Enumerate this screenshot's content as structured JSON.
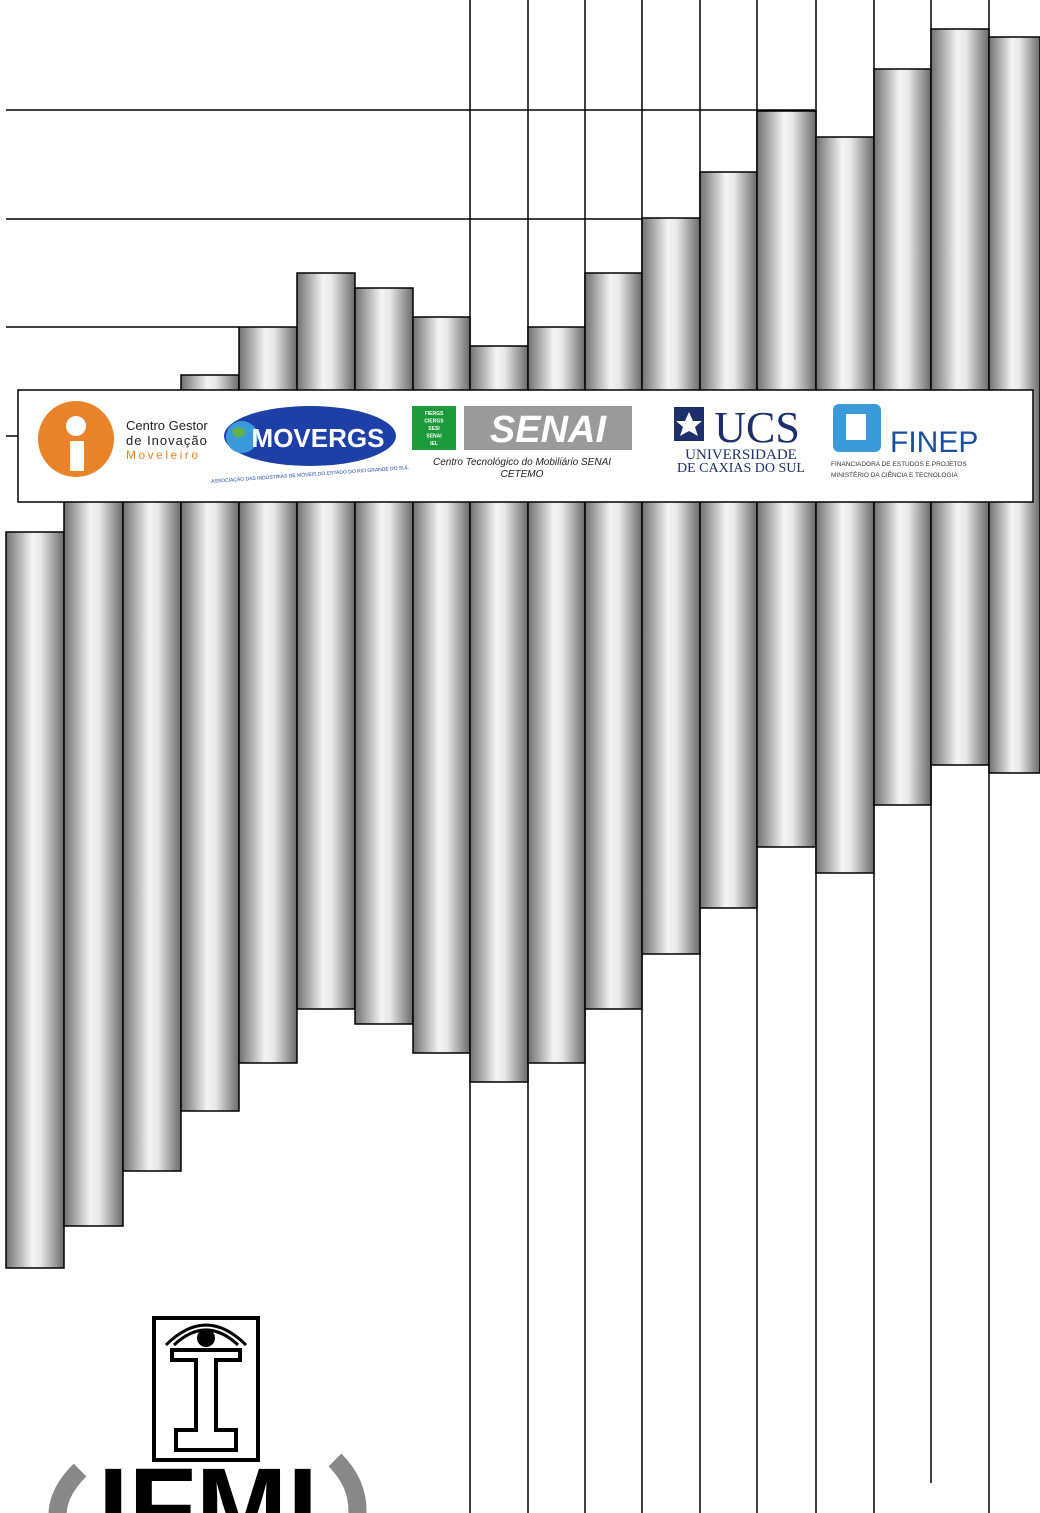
{
  "logos": {
    "cgi": {
      "line1": "Centro Gestor",
      "line2": "de Inovação",
      "line3": "Moveleiro"
    },
    "movergs": {
      "name": "MOVERGS",
      "tagline": "ASSOCIAÇÃO DAS INDÚSTRIAS DE MÓVEIS DO ESTADO DO RIO GRANDE DO SUL"
    },
    "senai": {
      "system": [
        "FIERGS",
        "CIERGS",
        "SESI",
        "SENAI",
        "IEL"
      ],
      "name": "SENAI",
      "line1": "Centro Tecnológico do Mobiliário SENAI",
      "line2": "CETEMO"
    },
    "ucs": {
      "name": "UCS",
      "line1": "UNIVERSIDADE",
      "line2": "DE CAXIAS DO SUL"
    },
    "finep": {
      "name": "FINEP",
      "line1": "FINANCIADORA DE ESTUDOS E PROJETOS",
      "line2": "MINISTÉRIO DA CIÊNCIA E TECNOLOGIA"
    }
  },
  "footer": {
    "logo": "IFMI"
  }
}
